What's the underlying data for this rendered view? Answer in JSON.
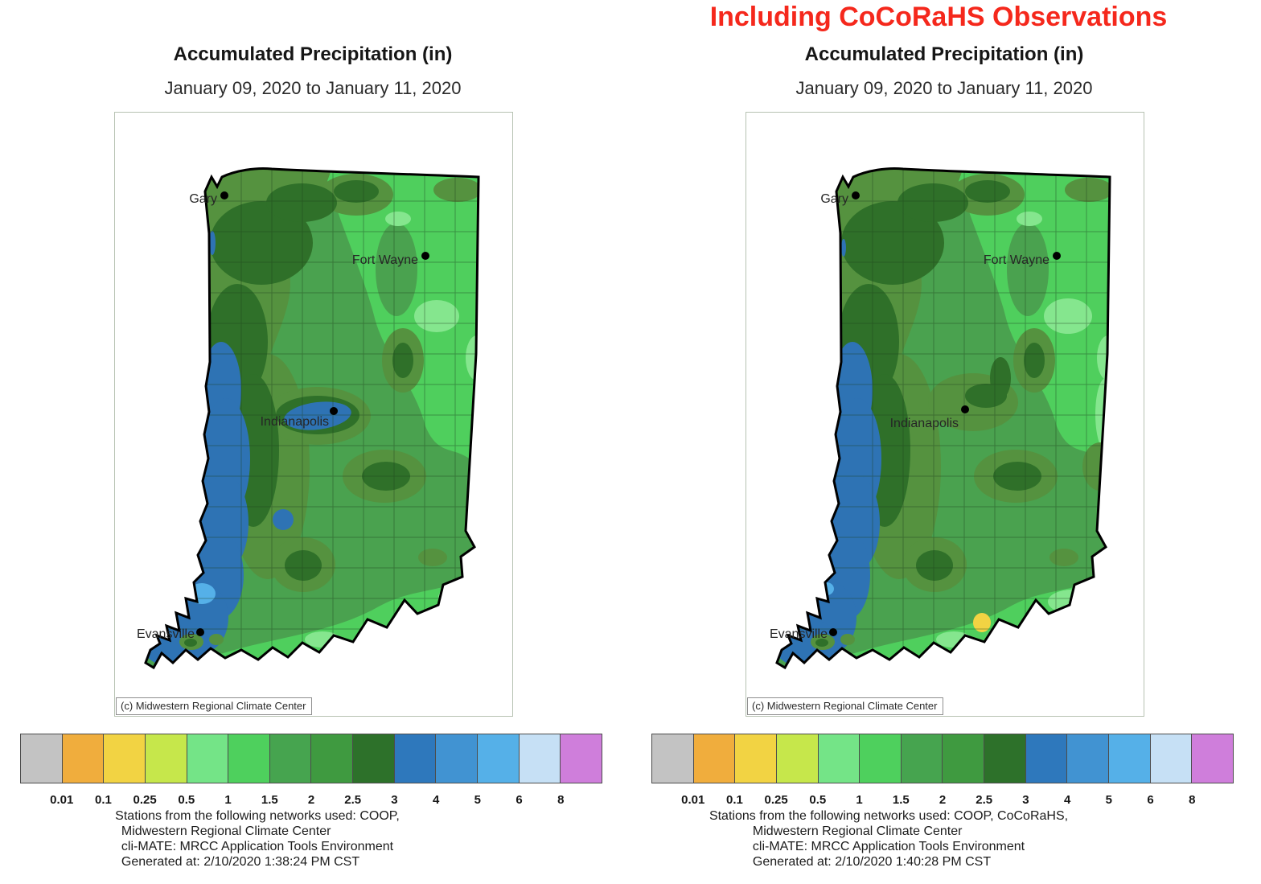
{
  "banner": {
    "text": "Including CoCoRaHS Observations"
  },
  "colors": {
    "banner": "#f5281c",
    "base": "#4aa24f",
    "olive": "#55923f",
    "dark": "#2f7029",
    "bright": "#4fcf5d",
    "mint": "#85e68e",
    "blue": "#2e73b4",
    "light_blue": "#55b0e8",
    "yellow": "#f2d343",
    "outline": "#000000"
  },
  "legend": {
    "labels": [
      "0.01",
      "0.1",
      "0.25",
      "0.5",
      "1",
      "1.5",
      "2",
      "2.5",
      "3",
      "4",
      "5",
      "6",
      "8"
    ],
    "colors": [
      "#c3c3c3",
      "#f0ad3d",
      "#f2d343",
      "#c6e74b",
      "#74e487",
      "#4ed05d",
      "#46a44f",
      "#3f9a40",
      "#2d712a",
      "#2e78bc",
      "#4193d2",
      "#55b0e8",
      "#c6e0f5",
      "#cf7edb"
    ]
  },
  "maps": {
    "left": {
      "title": "Accumulated Precipitation (in)",
      "subtitle": "January 09, 2020 to January 11, 2020",
      "copyright": "(c) Midwestern Regional Climate Center",
      "cities": {
        "gary": "Gary",
        "fort_wayne": "Fort Wayne",
        "indianapolis": "Indianapolis",
        "evansville": "Evansville"
      },
      "footer": [
        "Stations from the following networks used: COOP,",
        "Midwestern Regional Climate Center",
        "cli-MATE: MRCC Application Tools Environment",
        "Generated at: 2/10/2020 1:38:24 PM CST"
      ]
    },
    "right": {
      "title": "Accumulated Precipitation (in)",
      "subtitle": "January 09, 2020 to January 11, 2020",
      "copyright": "(c) Midwestern Regional Climate Center",
      "cities": {
        "gary": "Gary",
        "fort_wayne": "Fort Wayne",
        "indianapolis": "Indianapolis",
        "evansville": "Evansville"
      },
      "footer": [
        "Stations from the following networks used: COOP, CoCoRaHS,",
        "Midwestern Regional Climate Center",
        "cli-MATE: MRCC Application Tools Environment",
        "Generated at: 2/10/2020 1:40:28 PM CST"
      ]
    }
  }
}
